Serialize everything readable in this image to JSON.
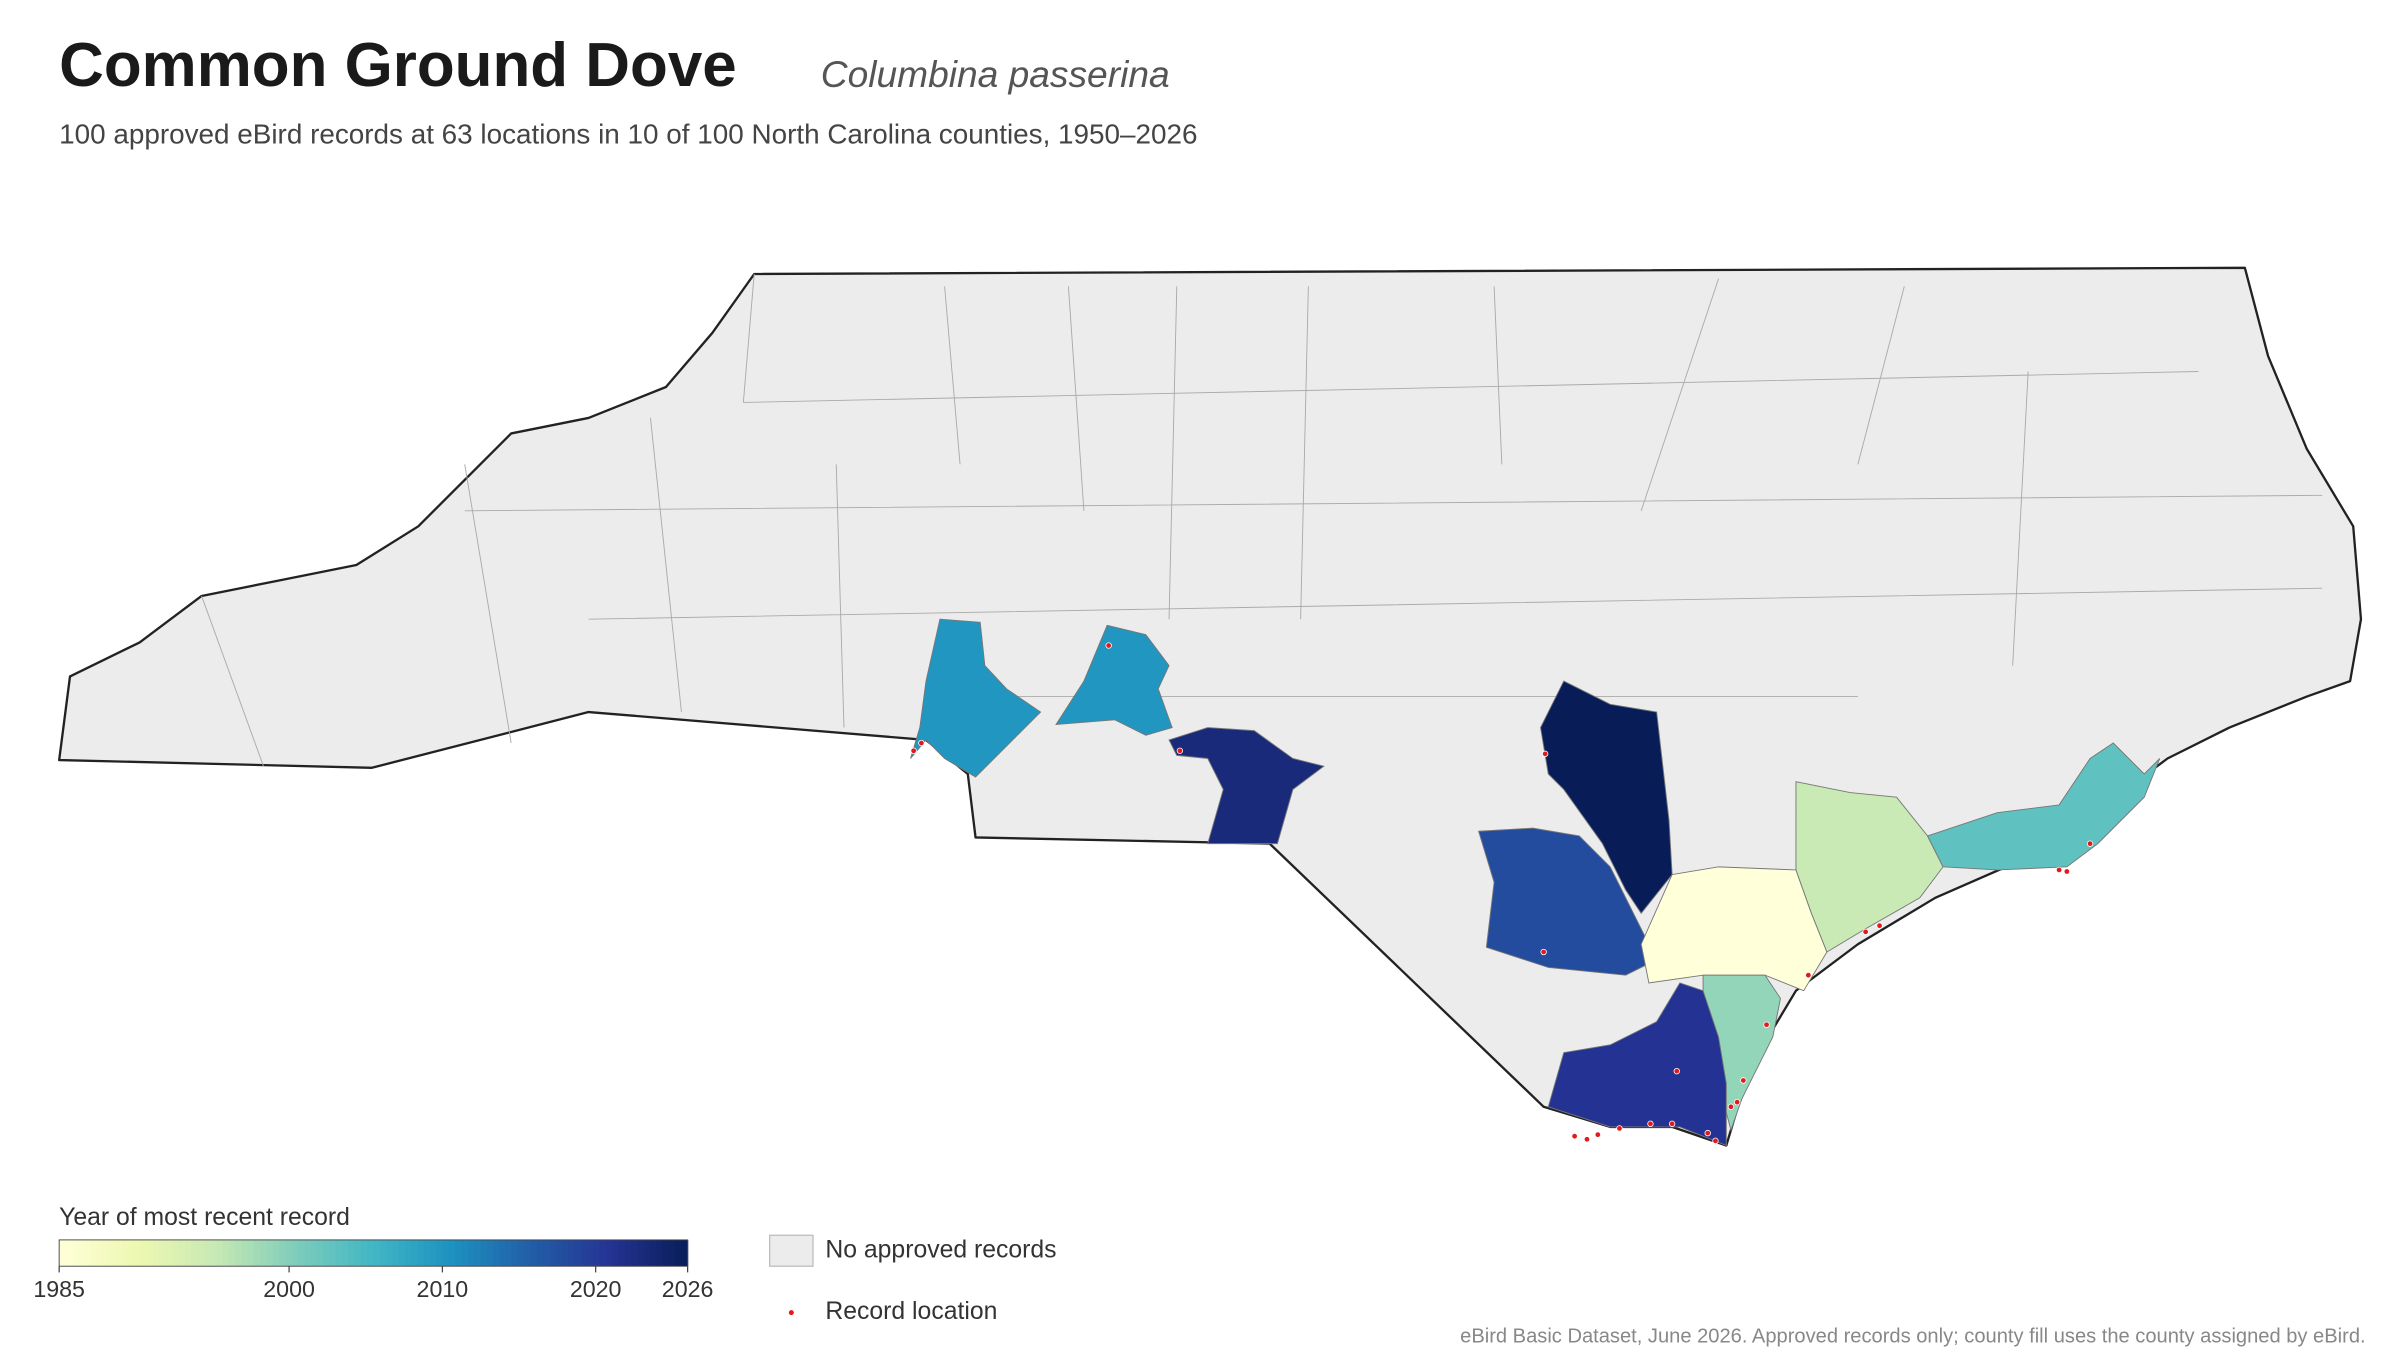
{
  "chart_data": {
    "type": "choropleth",
    "title": "Common Ground Dove",
    "species": "Columbina passerina",
    "subtitle": "100 approved eBird records at 63 locations in 10 of 100 North Carolina counties, 1950–2026",
    "colorbar_title": "Year of most recent record",
    "colorbar_lim": [
      1985,
      2026
    ],
    "colorbar_ticks": [
      1985,
      2000,
      2010,
      2020,
      2026
    ],
    "colormap": [
      "#ffffd9",
      "#edf8b1",
      "#c7e9b4",
      "#7fcdbb",
      "#41b6c4",
      "#1d91c0",
      "#225ea8",
      "#253494",
      "#081d58"
    ],
    "county_years": [
      2010,
      2010,
      2023,
      2026,
      2018,
      1985,
      1995,
      2003,
      1999,
      2021
    ],
    "no_record_color": "#ececec",
    "no_record_label": "No approved records",
    "record_color": "#e31a1c",
    "record_label": "Record location",
    "source": "eBird Basic Dataset, June 2026. Approved records only; county fill uses the county assigned by eBird."
  }
}
